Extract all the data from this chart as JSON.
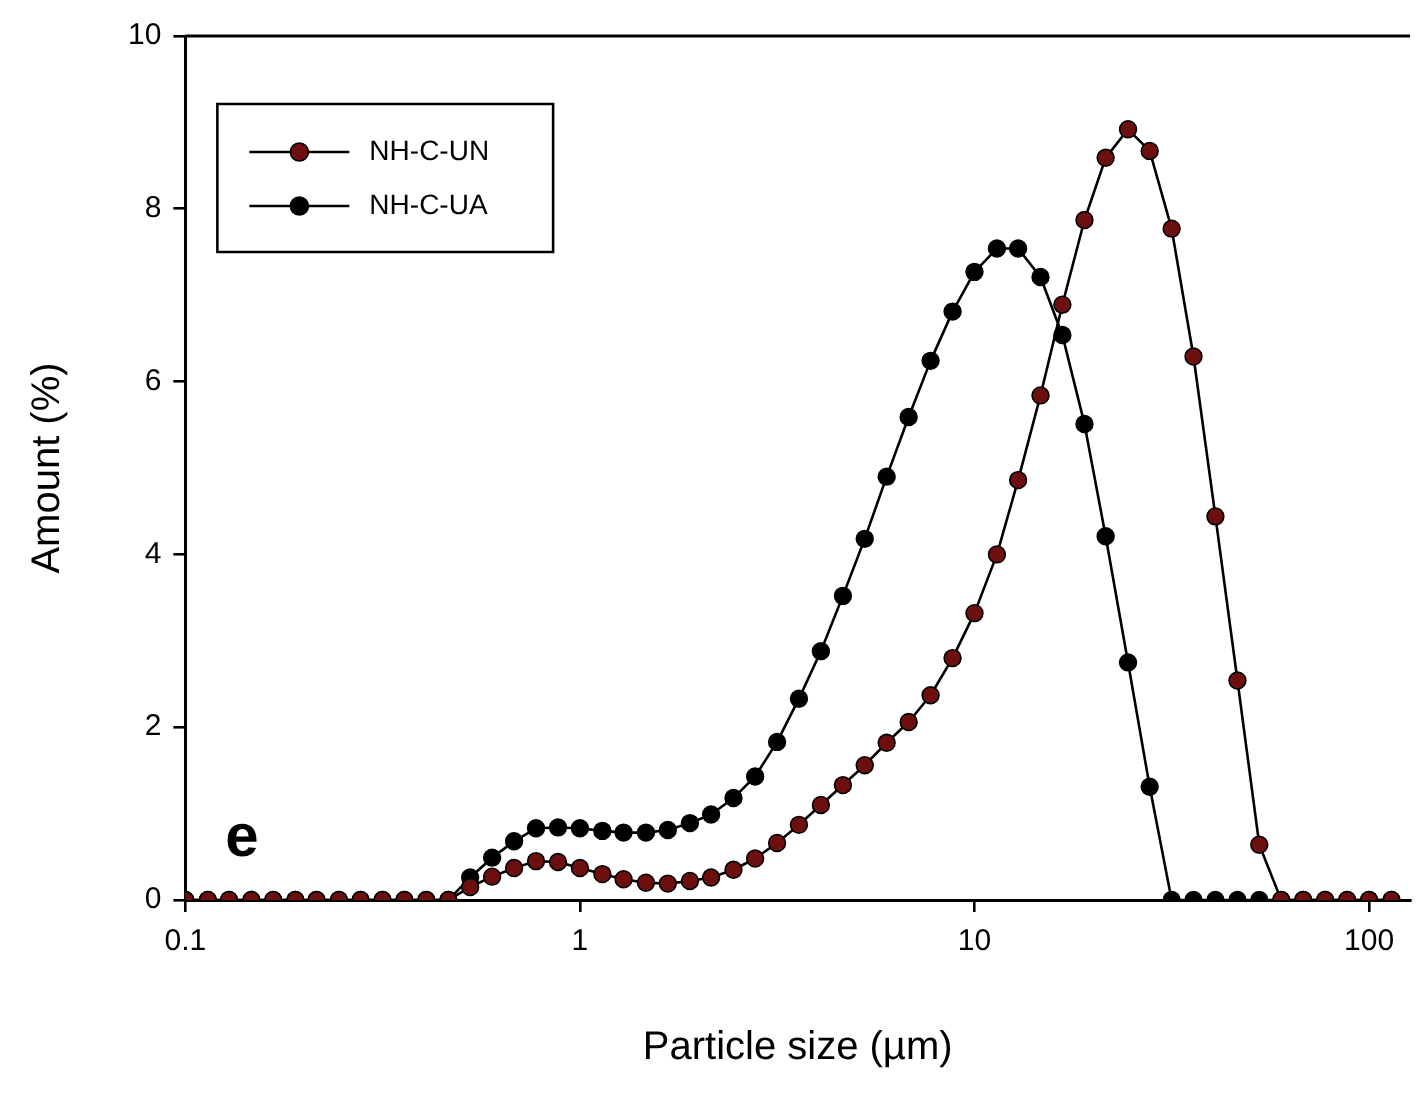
{
  "chart_data": {
    "type": "line",
    "xlabel": "Particle size (µm)",
    "ylabel": "Amount (%)",
    "annotations": [
      "e"
    ],
    "x": [
      0.1,
      0.114,
      0.129,
      0.147,
      0.167,
      0.19,
      0.215,
      0.245,
      0.278,
      0.316,
      0.359,
      0.408,
      0.464,
      0.527,
      0.599,
      0.681,
      0.774,
      0.88,
      1.0,
      1.14,
      1.29,
      1.47,
      1.67,
      1.9,
      2.15,
      2.45,
      2.78,
      3.16,
      3.59,
      4.08,
      4.64,
      5.27,
      5.99,
      6.81,
      7.74,
      8.8,
      10,
      11.4,
      12.9,
      14.7,
      16.7,
      19.0,
      21.5,
      24.5,
      27.8,
      31.6,
      35.9,
      40.8,
      46.4,
      52.7,
      59.9,
      68.1,
      77.4,
      88.0,
      100,
      114
    ],
    "series": [
      {
        "name": "NH-C-UN",
        "color": "#6e0f0f",
        "values": [
          0,
          0,
          0,
          0,
          0,
          0,
          0,
          0,
          0,
          0,
          0,
          0,
          0,
          0.15,
          0.27,
          0.37,
          0.45,
          0.44,
          0.37,
          0.3,
          0.24,
          0.2,
          0.19,
          0.22,
          0.26,
          0.35,
          0.48,
          0.66,
          0.87,
          1.1,
          1.33,
          1.56,
          1.82,
          2.06,
          2.37,
          2.8,
          3.32,
          4.0,
          4.86,
          5.84,
          6.89,
          7.87,
          8.59,
          8.92,
          8.67,
          7.77,
          6.29,
          4.44,
          2.54,
          0.64,
          0,
          0,
          0,
          0,
          0,
          0
        ]
      },
      {
        "name": "NH-C-UA",
        "color": "#000000",
        "values": [
          0,
          0,
          0,
          0,
          0,
          0,
          0,
          0,
          0,
          0,
          0,
          0,
          0,
          0.26,
          0.49,
          0.68,
          0.83,
          0.84,
          0.83,
          0.8,
          0.78,
          0.78,
          0.81,
          0.89,
          0.99,
          1.18,
          1.43,
          1.83,
          2.33,
          2.88,
          3.52,
          4.18,
          4.9,
          5.59,
          6.24,
          6.81,
          7.27,
          7.54,
          7.54,
          7.21,
          6.54,
          5.51,
          4.21,
          2.75,
          1.31,
          0,
          0,
          0,
          0,
          0,
          0,
          0,
          0,
          0,
          0,
          0
        ]
      }
    ],
    "log": "x",
    "xlim": [
      0.1,
      127
    ],
    "xticks": [
      0.1,
      1,
      10,
      100
    ],
    "ylim": [
      0,
      10
    ],
    "yticks": [
      0,
      2,
      4,
      6,
      8,
      10
    ],
    "legend": "top left",
    "marker": "circle",
    "line_style": "solid"
  }
}
